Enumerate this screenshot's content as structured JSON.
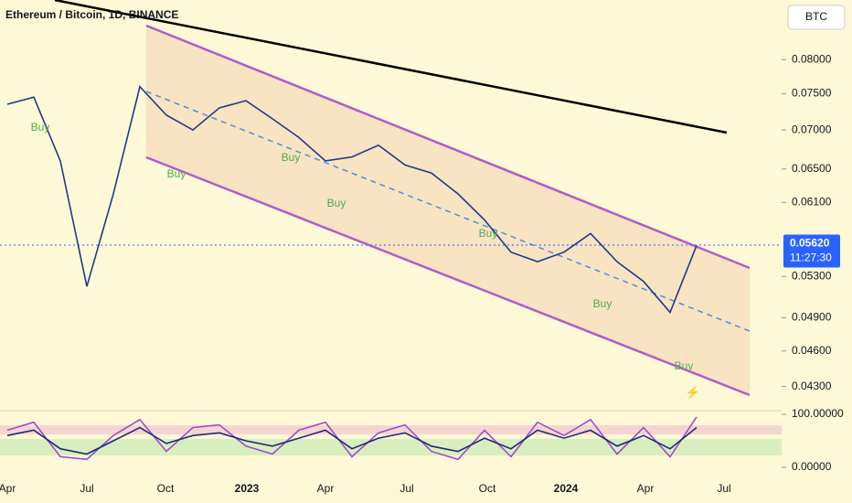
{
  "chart_data": {
    "type": "line",
    "title": "Ethereum / Bitcoin, 1D, BINANCE",
    "currency": "BTC",
    "log_scale": true,
    "ylim": [
      0.041,
      0.0896
    ],
    "yticks": [
      {
        "value": 0.08,
        "label": "0.08000"
      },
      {
        "value": 0.075,
        "label": "0.07500"
      },
      {
        "value": 0.07,
        "label": "0.07000"
      },
      {
        "value": 0.065,
        "label": "0.06500"
      },
      {
        "value": 0.061,
        "label": "0.06100"
      },
      {
        "value": 0.053,
        "label": "0.05300"
      },
      {
        "value": 0.049,
        "label": "0.04900"
      },
      {
        "value": 0.046,
        "label": "0.04600"
      },
      {
        "value": 0.043,
        "label": "0.04300"
      }
    ],
    "last_price": {
      "value": 0.0562,
      "label": "0.05620"
    },
    "countdown": "11:27:30",
    "xaxis_labels": [
      "Apr",
      "Jul",
      "Oct",
      "2023",
      "Apr",
      "Jul",
      "Oct",
      "2024",
      "Apr",
      "Jul"
    ],
    "series": [
      {
        "color": "#1e3a8a",
        "values": [
          0.0735,
          0.0745,
          0.066,
          0.052,
          0.062,
          0.076,
          0.072,
          0.07,
          0.073,
          0.074,
          0.0715,
          0.069,
          0.066,
          0.0665,
          0.068,
          0.0655,
          0.0645,
          0.062,
          0.059,
          0.0555,
          0.0545,
          0.0555,
          0.0575,
          0.0545,
          0.0525,
          0.0495,
          0.0562
        ]
      }
    ],
    "annotations": [
      "Buy",
      "Buy",
      "Buy",
      "Buy",
      "Buy",
      "Buy",
      "Buy"
    ],
    "oscillator": {
      "ylim": [
        0,
        100
      ],
      "yticks": [
        {
          "value": 100,
          "label": "100.00000"
        },
        {
          "value": 0,
          "label": "0.00000"
        }
      ],
      "series": [
        {
          "color": "#9c4dcc",
          "values": [
            70,
            85,
            20,
            15,
            60,
            90,
            30,
            75,
            80,
            40,
            25,
            70,
            85,
            20,
            65,
            80,
            30,
            15,
            70,
            20,
            85,
            60,
            90,
            25,
            75,
            20,
            95
          ]
        },
        {
          "color": "#1e2a78",
          "values": [
            60,
            70,
            35,
            25,
            50,
            75,
            45,
            60,
            65,
            50,
            40,
            55,
            70,
            35,
            55,
            65,
            40,
            30,
            55,
            35,
            70,
            55,
            70,
            40,
            60,
            35,
            75
          ]
        }
      ]
    }
  }
}
